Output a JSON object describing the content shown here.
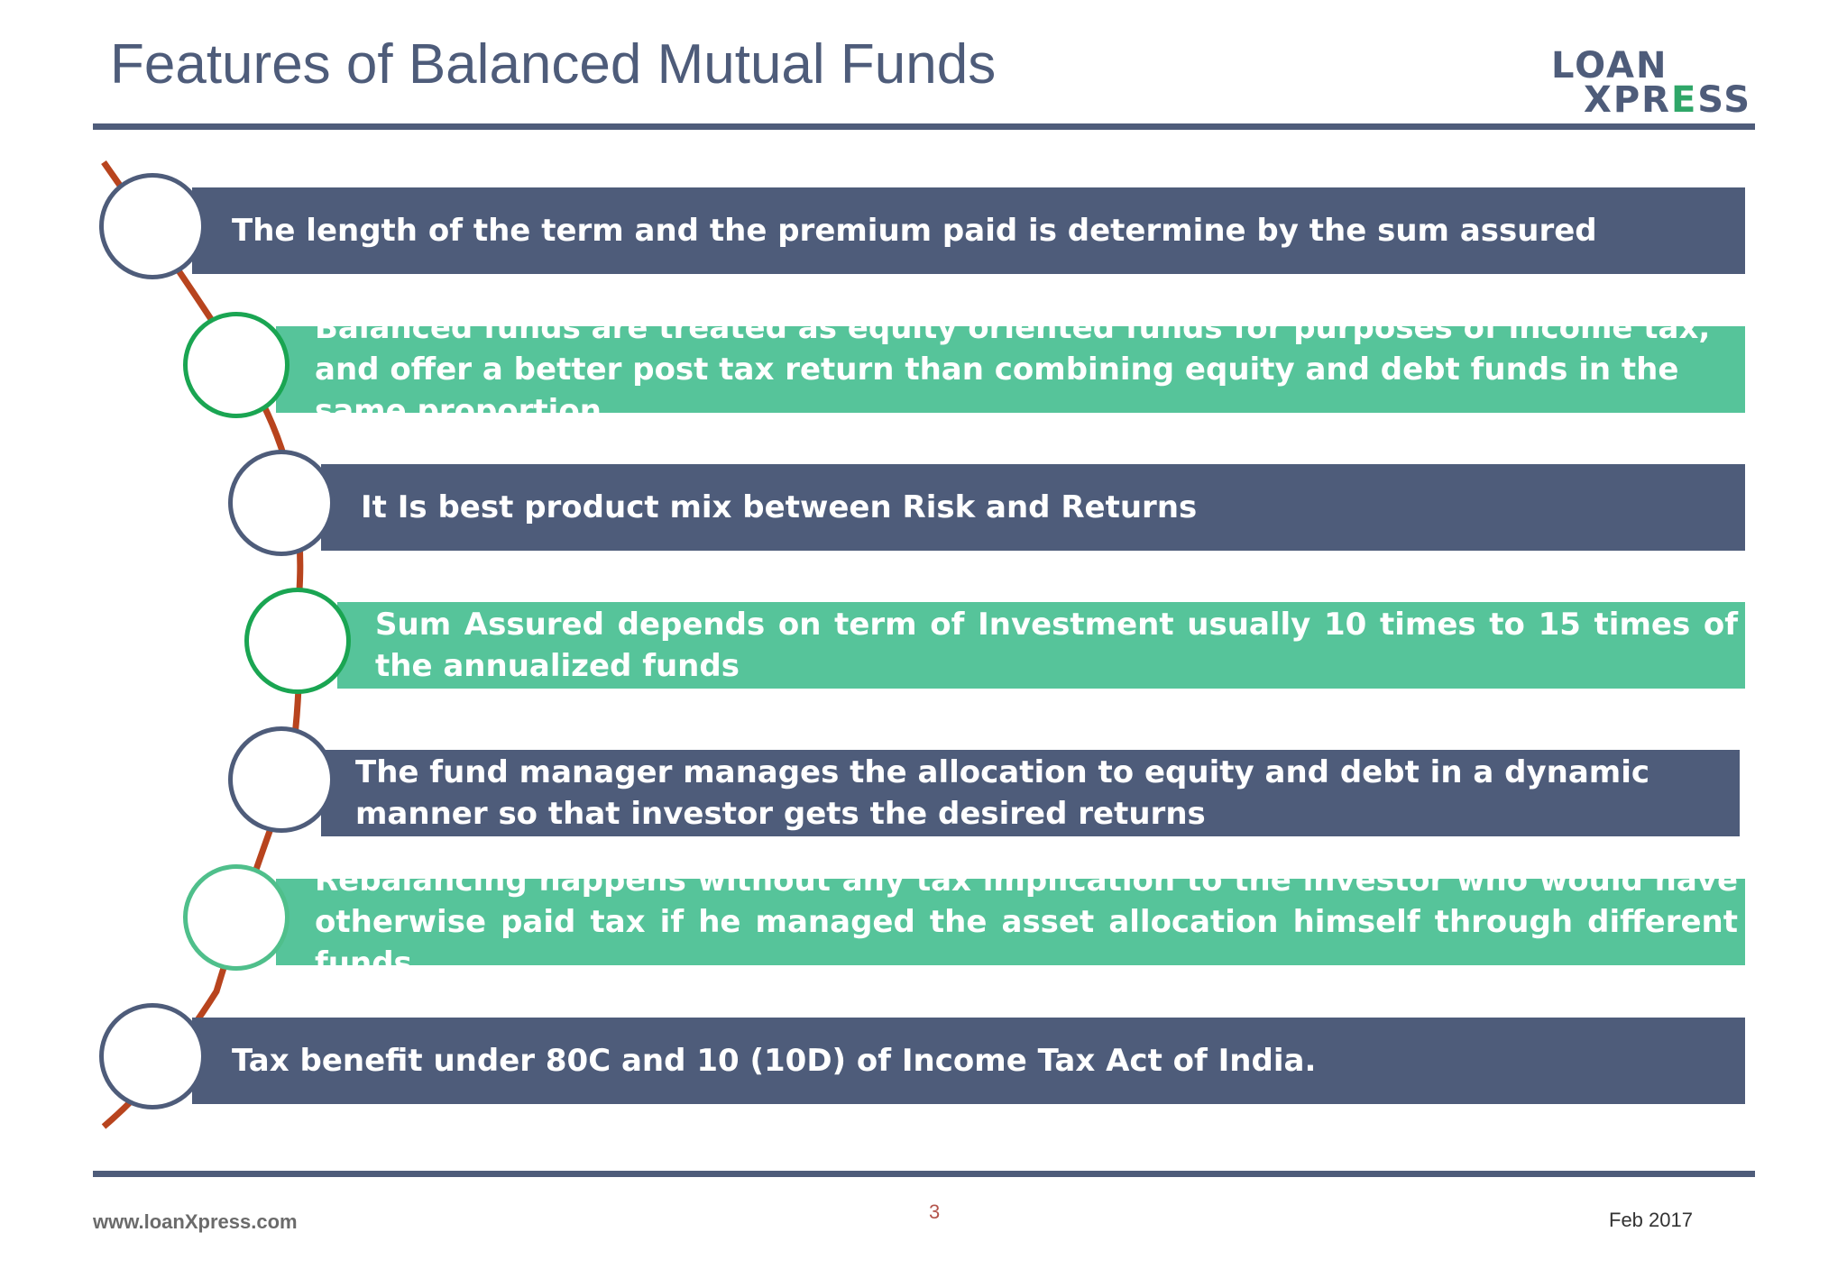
{
  "title": "Features of Balanced Mutual Funds",
  "logo": {
    "line1": "LOAN",
    "line2_a": "XPR",
    "line2_b": "E",
    "line2_c": "SS"
  },
  "colors": {
    "navy": "#4e5c7a",
    "green": "#56c49a",
    "circle_green": "#1aa552",
    "connector": "#b8441e",
    "page_number": "#b4554c"
  },
  "features": [
    {
      "text": "The length of the term and the premium paid is determine by the sum assured",
      "style": "navy"
    },
    {
      "text": "Balanced funds are treated as equity oriented funds for purposes of income tax, and offer a better post tax return than combining equity and debt funds in the same proportion",
      "style": "green"
    },
    {
      "text": "It Is best product mix between Risk and Returns",
      "style": "navy"
    },
    {
      "text": "Sum Assured depends on term of Investment usually 10 times to 15 times of the annualized funds",
      "style": "green"
    },
    {
      "text": "The fund manager manages the allocation to equity and debt in a dynamic manner  so that investor gets the desired returns",
      "style": "navy"
    },
    {
      "text": "Rebalancing happens without any tax implication to the investor who would have otherwise paid tax if he managed the asset allocation himself through different funds",
      "style": "green"
    },
    {
      "text": "Tax benefit under 80C and 10 (10D) of Income Tax Act of India.",
      "style": "navy"
    }
  ],
  "footer": {
    "url": "www.loanXpress.com",
    "page": "3",
    "date": "Feb 2017"
  }
}
